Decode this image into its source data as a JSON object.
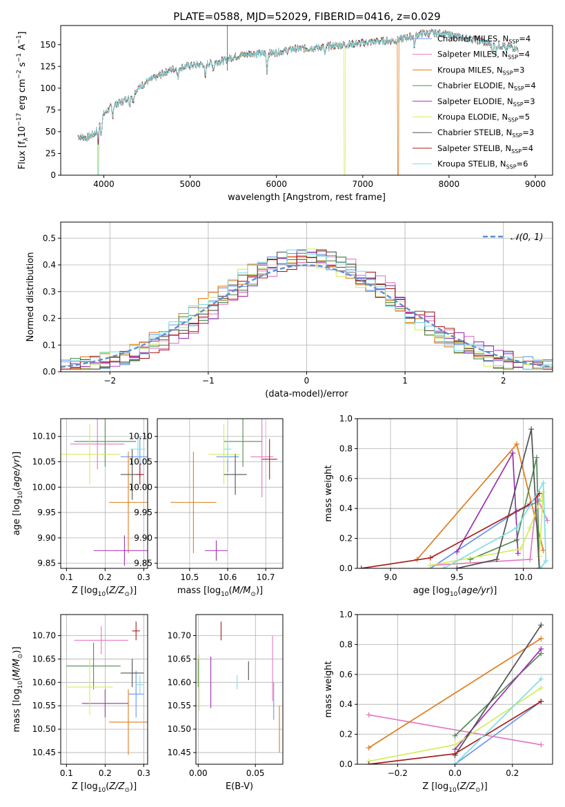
{
  "figure": {
    "title": "PLATE=0588, MJD=52029, FIBERID=0416, z=0.029"
  },
  "legend_spectra": [
    {
      "label": "Chabrier MILES, N",
      "sub": "SSP",
      "suffix": "=4",
      "color": "#6495ed"
    },
    {
      "label": "Salpeter MILES, N",
      "sub": "SSP",
      "suffix": "=4",
      "color": "#e377c2"
    },
    {
      "label": "Kroupa MILES, N",
      "sub": "SSP",
      "suffix": "=3",
      "color": "#e07b1a"
    },
    {
      "label": "Chabrier ELODIE, N",
      "sub": "SSP",
      "suffix": "=4",
      "color": "#4f8a4f"
    },
    {
      "label": "Salpeter ELODIE, N",
      "sub": "SSP",
      "suffix": "=3",
      "color": "#9b2fae"
    },
    {
      "label": "Kroupa ELODIE, N",
      "sub": "SSP",
      "suffix": "=5",
      "color": "#d4ec5a"
    },
    {
      "label": "Chabrier STELIB, N",
      "sub": "SSP",
      "suffix": "=3",
      "color": "#505050"
    },
    {
      "label": "Salpeter STELIB, N",
      "sub": "SSP",
      "suffix": "=4",
      "color": "#a81c1c"
    },
    {
      "label": "Kroupa STELIB, N",
      "sub": "SSP",
      "suffix": "=6",
      "color": "#7fdde0"
    }
  ],
  "chart_data": [
    {
      "id": "spectrum",
      "type": "line",
      "xlabel": "wavelength [Angstrom, rest frame]",
      "ylabel": "Flux [f",
      "xlim": [
        3500,
        9200
      ],
      "ylim": [
        0,
        172
      ],
      "xticks": [
        4000,
        5000,
        6000,
        7000,
        8000,
        9000
      ],
      "yticks": [
        0,
        25,
        50,
        75,
        100,
        125,
        150
      ],
      "continuum": [
        [
          3700,
          45
        ],
        [
          3800,
          43
        ],
        [
          3900,
          48
        ],
        [
          4000,
          70
        ],
        [
          4100,
          80
        ],
        [
          4200,
          84
        ],
        [
          4300,
          90
        ],
        [
          4400,
          100
        ],
        [
          4500,
          108
        ],
        [
          4600,
          112
        ],
        [
          4700,
          118
        ],
        [
          4800,
          122
        ],
        [
          4900,
          124
        ],
        [
          5000,
          126
        ],
        [
          5100,
          127
        ],
        [
          5200,
          128
        ],
        [
          5300,
          130
        ],
        [
          5400,
          132
        ],
        [
          5500,
          136
        ],
        [
          5600,
          138
        ],
        [
          5700,
          140
        ],
        [
          5800,
          140
        ],
        [
          5900,
          140
        ],
        [
          6000,
          141
        ],
        [
          6200,
          145
        ],
        [
          6400,
          146
        ],
        [
          6600,
          148
        ],
        [
          6800,
          150
        ],
        [
          7000,
          152
        ],
        [
          7200,
          154
        ],
        [
          7400,
          155
        ],
        [
          7500,
          158
        ],
        [
          7700,
          163
        ],
        [
          7900,
          163
        ],
        [
          8100,
          159
        ],
        [
          8300,
          156
        ],
        [
          8500,
          150
        ],
        [
          8700,
          148
        ],
        [
          8800,
          145
        ]
      ],
      "drops": [
        {
          "x": 3932,
          "model": "Kroupa ELODIE"
        },
        {
          "x": 3935,
          "model": "Kroupa STELIB"
        },
        {
          "x": 6790,
          "model": "Kroupa ELODIE"
        },
        {
          "x": 7410,
          "model": "Kroupa MILES"
        }
      ],
      "spike": {
        "x": 5430,
        "value": 172
      }
    },
    {
      "id": "residual_hist",
      "type": "histogram",
      "xlabel": "(data-model)/error",
      "ylabel": "Normed distribution",
      "xlim": [
        -2.5,
        2.5
      ],
      "ylim": [
        0,
        0.56
      ],
      "xticks": [
        -2,
        -1,
        0,
        1,
        2
      ],
      "yticks": [
        0.0,
        0.1,
        0.2,
        0.3,
        0.4,
        0.5
      ],
      "bin_width": 0.1,
      "bin_start": -2.5,
      "normal_label": "𝒩(0, 1)",
      "series": [
        {
          "model": "Chabrier MILES",
          "seed": 1
        },
        {
          "model": "Salpeter MILES",
          "seed": 2
        },
        {
          "model": "Kroupa MILES",
          "seed": 3
        },
        {
          "model": "Chabrier ELODIE",
          "seed": 4
        },
        {
          "model": "Salpeter ELODIE",
          "seed": 5
        },
        {
          "model": "Kroupa ELODIE",
          "seed": 6
        },
        {
          "model": "Chabrier STELIB",
          "seed": 7
        },
        {
          "model": "Salpeter STELIB",
          "seed": 8
        },
        {
          "model": "Kroupa STELIB",
          "seed": 9
        }
      ]
    },
    {
      "id": "age_vs_Z",
      "type": "errorbar",
      "xlabel": "Z [log",
      "ylabel": "age  [log",
      "xlim": [
        0.085,
        0.31
      ],
      "ylim": [
        9.84,
        10.135
      ],
      "xticks": [
        0.1,
        0.2,
        0.3
      ],
      "yticks": [
        9.85,
        9.9,
        9.95,
        10.0,
        10.05,
        10.1
      ],
      "points": [
        {
          "model": "Chabrier MILES",
          "x": 0.29,
          "xerr": 0.05,
          "y": 10.06,
          "yerr": 0.04
        },
        {
          "model": "Salpeter MILES",
          "x": 0.18,
          "xerr": 0.07,
          "y": 10.085,
          "yerr": 0.05
        },
        {
          "model": "Kroupa MILES",
          "x": 0.26,
          "xerr": 0.05,
          "y": 9.97,
          "yerr": 0.1
        },
        {
          "model": "Chabrier ELODIE",
          "x": 0.2,
          "xerr": 0.08,
          "y": 10.09,
          "yerr": 0.05
        },
        {
          "model": "Salpeter ELODIE",
          "x": 0.25,
          "xerr": 0.08,
          "y": 9.875,
          "yerr": 0.03
        },
        {
          "model": "Kroupa ELODIE",
          "x": 0.16,
          "xerr": 0.08,
          "y": 10.065,
          "yerr": 0.06
        },
        {
          "model": "Chabrier STELIB",
          "x": 0.27,
          "xerr": 0.03,
          "y": 10.025,
          "yerr": 0.05
        },
        {
          "model": "Salpeter STELIB",
          "x": 0.29,
          "xerr": 0.01,
          "y": 10.025,
          "yerr": 0.02
        },
        {
          "model": "Kroupa STELIB",
          "x": 0.285,
          "xerr": 0.02,
          "y": 10.075,
          "yerr": 0.02
        }
      ]
    },
    {
      "id": "age_vs_mass",
      "type": "errorbar",
      "xlabel": "mass [log",
      "xlim": [
        10.415,
        10.745
      ],
      "ylim": [
        9.84,
        10.135
      ],
      "xticks": [
        10.5,
        10.6,
        10.7
      ],
      "yticks": [
        9.85,
        9.9,
        9.95,
        10.0,
        10.05,
        10.1
      ],
      "points": [
        {
          "model": "Chabrier MILES",
          "x": 10.6,
          "xerr": 0.03,
          "y": 10.06,
          "yerr": 0.03
        },
        {
          "model": "Salpeter MILES",
          "x": 10.69,
          "xerr": 0.03,
          "y": 10.06,
          "yerr": 0.08
        },
        {
          "model": "Kroupa MILES",
          "x": 10.51,
          "xerr": 0.06,
          "y": 9.97,
          "yerr": 0.1
        },
        {
          "model": "Chabrier ELODIE",
          "x": 10.64,
          "xerr": 0.05,
          "y": 10.09,
          "yerr": 0.05
        },
        {
          "model": "Salpeter ELODIE",
          "x": 10.57,
          "xerr": 0.03,
          "y": 9.875,
          "yerr": 0.02
        },
        {
          "model": "Kroupa ELODIE",
          "x": 10.59,
          "xerr": 0.04,
          "y": 10.065,
          "yerr": 0.06
        },
        {
          "model": "Chabrier STELIB",
          "x": 10.62,
          "xerr": 0.03,
          "y": 10.025,
          "yerr": 0.04
        },
        {
          "model": "Salpeter STELIB",
          "x": 10.71,
          "xerr": 0.02,
          "y": 10.055,
          "yerr": 0.04
        },
        {
          "model": "Kroupa STELIB",
          "x": 10.6,
          "xerr": 0.01,
          "y": 10.075,
          "yerr": 0.02
        }
      ]
    },
    {
      "id": "weight_vs_age",
      "type": "line",
      "xlabel": "age  [log",
      "ylabel": "mass weight",
      "xlim": [
        8.75,
        10.22
      ],
      "ylim": [
        0,
        1
      ],
      "xticks": [
        9.0,
        9.5,
        10.0
      ],
      "yticks": [
        0.0,
        0.2,
        0.4,
        0.6,
        0.8,
        1.0
      ],
      "series": [
        {
          "model": "Chabrier MILES",
          "points": [
            [
              9.3,
              0.0
            ],
            [
              9.95,
              0.38
            ],
            [
              10.12,
              0.45
            ]
          ]
        },
        {
          "model": "Salpeter MILES",
          "points": [
            [
              9.3,
              0.02
            ],
            [
              10.05,
              0.06
            ],
            [
              10.1,
              0.48
            ],
            [
              10.18,
              0.32
            ]
          ]
        },
        {
          "model": "Kroupa MILES",
          "points": [
            [
              9.2,
              0.06
            ],
            [
              9.95,
              0.83
            ],
            [
              10.15,
              0.12
            ]
          ]
        },
        {
          "model": "Chabrier ELODIE",
          "points": [
            [
              9.6,
              0.06
            ],
            [
              9.95,
              0.19
            ],
            [
              10.1,
              0.74
            ],
            [
              10.12,
              0.0
            ]
          ]
        },
        {
          "model": "Salpeter ELODIE",
          "points": [
            [
              9.5,
              0.11
            ],
            [
              9.92,
              0.77
            ],
            [
              9.96,
              0.1
            ]
          ]
        },
        {
          "model": "Kroupa ELODIE",
          "points": [
            [
              9.3,
              0.02
            ],
            [
              9.98,
              0.13
            ],
            [
              10.05,
              0.27
            ],
            [
              10.15,
              0.51
            ],
            [
              10.12,
              0.08
            ]
          ]
        },
        {
          "model": "Chabrier STELIB",
          "points": [
            [
              9.5,
              0.0
            ],
            [
              9.8,
              0.06
            ],
            [
              10.06,
              0.93
            ],
            [
              10.12,
              0.0
            ]
          ]
        },
        {
          "model": "Salpeter STELIB",
          "points": [
            [
              8.78,
              0.0
            ],
            [
              9.3,
              0.07
            ],
            [
              10.05,
              0.43
            ],
            [
              10.12,
              0.5
            ]
          ]
        },
        {
          "model": "Kroupa STELIB",
          "points": [
            [
              9.4,
              0.0
            ],
            [
              9.95,
              0.27
            ],
            [
              10.15,
              0.57
            ],
            [
              10.17,
              0.05
            ],
            [
              10.13,
              0.0
            ]
          ]
        }
      ]
    },
    {
      "id": "mass_vs_Z",
      "type": "errorbar",
      "xlabel": "Z [log",
      "ylabel": "mass [log",
      "xlim": [
        0.085,
        0.31
      ],
      "ylim": [
        10.425,
        10.745
      ],
      "xticks": [
        0.1,
        0.2,
        0.3
      ],
      "yticks": [
        10.45,
        10.5,
        10.55,
        10.6,
        10.65,
        10.7
      ],
      "points": [
        {
          "model": "Chabrier MILES",
          "x": 0.28,
          "xerr": 0.02,
          "y": 10.575,
          "yerr": 0.05
        },
        {
          "model": "Salpeter MILES",
          "x": 0.19,
          "xerr": 0.07,
          "y": 10.69,
          "yerr": 0.03
        },
        {
          "model": "Kroupa MILES",
          "x": 0.26,
          "xerr": 0.05,
          "y": 10.515,
          "yerr": 0.07
        },
        {
          "model": "Chabrier ELODIE",
          "x": 0.17,
          "xerr": 0.07,
          "y": 10.635,
          "yerr": 0.05
        },
        {
          "model": "Salpeter ELODIE",
          "x": 0.2,
          "xerr": 0.06,
          "y": 10.555,
          "yerr": 0.03
        },
        {
          "model": "Kroupa ELODIE",
          "x": 0.16,
          "xerr": 0.06,
          "y": 10.59,
          "yerr": 0.06
        },
        {
          "model": "Chabrier STELIB",
          "x": 0.27,
          "xerr": 0.03,
          "y": 10.62,
          "yerr": 0.03
        },
        {
          "model": "Salpeter STELIB",
          "x": 0.28,
          "xerr": 0.01,
          "y": 10.71,
          "yerr": 0.02
        },
        {
          "model": "Kroupa STELIB",
          "x": 0.29,
          "xerr": 0.01,
          "y": 10.595,
          "yerr": 0.02
        }
      ]
    },
    {
      "id": "mass_vs_ebv",
      "type": "errorbar",
      "xlabel": "E(B-V)",
      "xlim": [
        -0.002,
        0.074
      ],
      "ylim": [
        10.425,
        10.745
      ],
      "xticks": [
        0.0,
        0.05
      ],
      "yticks": [
        10.45,
        10.5,
        10.55,
        10.6,
        10.65,
        10.7
      ],
      "points": [
        {
          "model": "Chabrier MILES",
          "x": 0.066,
          "y": 10.56,
          "yerr": 0.04
        },
        {
          "model": "Salpeter MILES",
          "x": 0.065,
          "y": 10.63,
          "yerr": 0.07
        },
        {
          "model": "Kroupa MILES",
          "x": 0.071,
          "y": 10.5,
          "yerr": 0.05
        },
        {
          "model": "Chabrier ELODIE",
          "x": 0.0,
          "y": 10.62,
          "yerr": 0.03
        },
        {
          "model": "Salpeter ELODIE",
          "x": 0.011,
          "y": 10.6,
          "yerr": 0.055
        },
        {
          "model": "Kroupa ELODIE",
          "x": 0.001,
          "y": 10.6,
          "yerr": 0.06
        },
        {
          "model": "Chabrier STELIB",
          "x": 0.044,
          "y": 10.625,
          "yerr": 0.02
        },
        {
          "model": "Salpeter STELIB",
          "x": 0.02,
          "y": 10.71,
          "yerr": 0.02
        },
        {
          "model": "Kroupa STELIB",
          "x": 0.034,
          "y": 10.6,
          "yerr": 0.015
        }
      ]
    },
    {
      "id": "weight_vs_Z",
      "type": "line",
      "xlabel": "Z [log",
      "ylabel": "mass weight",
      "xlim": [
        -0.34,
        0.34
      ],
      "ylim": [
        0,
        1
      ],
      "xticks": [
        -0.2,
        0.0,
        0.2
      ],
      "yticks": [
        0.0,
        0.2,
        0.4,
        0.6,
        0.8,
        1.0
      ],
      "series": [
        {
          "model": "Chabrier MILES",
          "points": [
            [
              0.0,
              0.0
            ],
            [
              0.3,
              0.42
            ]
          ]
        },
        {
          "model": "Salpeter MILES",
          "points": [
            [
              -0.3,
              0.33
            ],
            [
              0.3,
              0.13
            ]
          ]
        },
        {
          "model": "Kroupa MILES",
          "points": [
            [
              -0.3,
              0.11
            ],
            [
              0.3,
              0.84
            ]
          ]
        },
        {
          "model": "Chabrier ELODIE",
          "points": [
            [
              0.0,
              0.19
            ],
            [
              0.3,
              0.74
            ]
          ]
        },
        {
          "model": "Salpeter ELODIE",
          "points": [
            [
              0.0,
              0.1
            ],
            [
              0.3,
              0.77
            ]
          ]
        },
        {
          "model": "Kroupa ELODIE",
          "points": [
            [
              -0.3,
              0.02
            ],
            [
              0.0,
              0.13
            ],
            [
              0.3,
              0.51
            ]
          ]
        },
        {
          "model": "Chabrier STELIB",
          "points": [
            [
              0.0,
              0.06
            ],
            [
              0.3,
              0.93
            ]
          ]
        },
        {
          "model": "Salpeter STELIB",
          "points": [
            [
              -0.3,
              0.0
            ],
            [
              0.0,
              0.07
            ],
            [
              0.3,
              0.42
            ]
          ]
        },
        {
          "model": "Kroupa STELIB",
          "points": [
            [
              0.0,
              0.0
            ],
            [
              0.3,
              0.57
            ]
          ]
        }
      ]
    }
  ]
}
